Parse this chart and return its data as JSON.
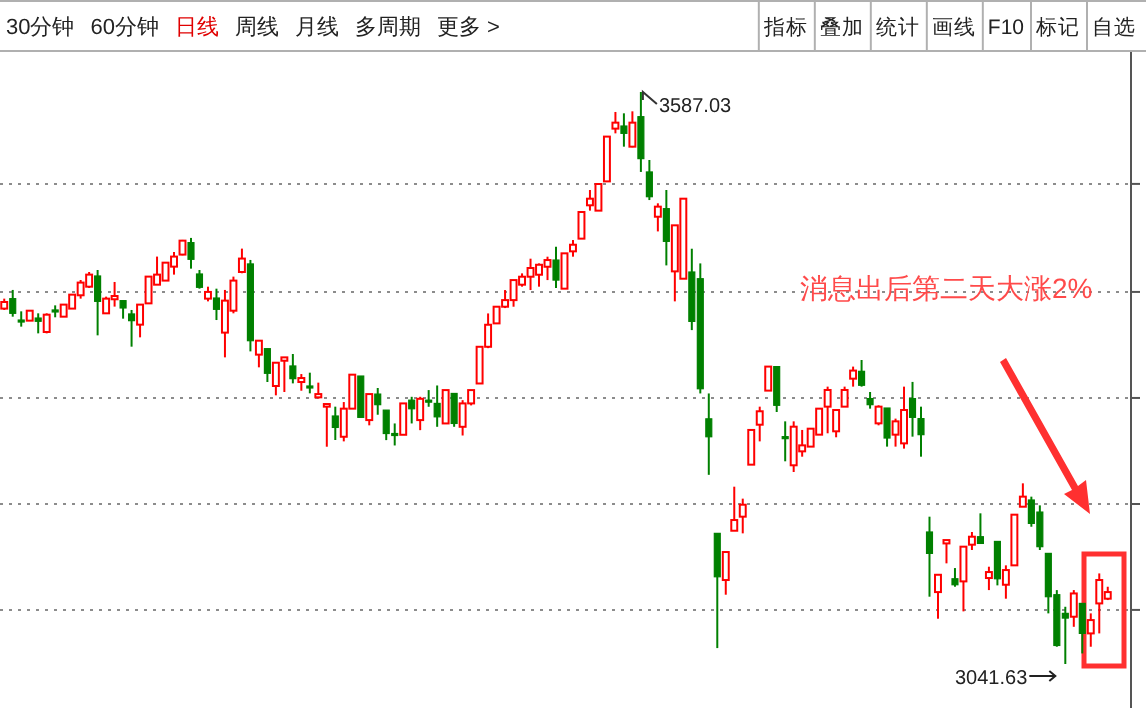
{
  "chart_data": {
    "type": "candlestick",
    "categories": [
      null,
      null,
      null,
      null,
      null,
      null,
      null,
      null,
      null,
      null,
      null,
      null,
      null,
      null,
      null,
      null,
      null,
      null,
      null,
      null,
      null,
      null,
      null,
      null,
      null,
      null,
      null,
      null,
      null,
      null,
      null,
      null,
      null,
      null,
      null,
      null,
      null,
      null,
      null,
      null,
      null,
      null,
      null,
      null,
      null,
      null,
      null,
      null,
      null,
      null,
      null,
      null,
      null,
      null,
      null,
      null,
      null,
      null,
      null,
      null,
      null,
      null,
      null,
      null,
      null,
      null,
      null,
      null,
      null,
      null,
      null,
      null,
      null,
      null,
      null,
      null,
      null,
      null,
      null,
      null,
      null,
      null,
      null,
      null,
      null,
      null,
      null,
      null,
      null,
      null,
      null,
      null,
      null,
      null,
      null,
      null,
      null,
      null,
      null,
      null,
      null,
      null,
      null,
      null,
      null,
      null,
      null,
      null,
      null,
      null,
      null,
      null,
      null,
      null,
      null,
      null,
      null,
      null,
      null,
      null,
      null,
      null,
      null,
      null,
      null,
      null,
      null,
      null,
      null,
      null,
      null
    ],
    "ohlc": [
      [
        3380.5,
        3390.0,
        3379.2,
        3386.8
      ],
      [
        3390.0,
        3398.3,
        3372.8,
        3376.0
      ],
      [
        3369.6,
        3377.9,
        3363.3,
        3368.4
      ],
      [
        3369.0,
        3378.5,
        3369.0,
        3378.5
      ],
      [
        3371.5,
        3376.0,
        3356.9,
        3368.4
      ],
      [
        3358.2,
        3376.0,
        3356.9,
        3374.7
      ],
      [
        3379.2,
        3383.6,
        3372.2,
        3377.9
      ],
      [
        3372.8,
        3384.3,
        3372.8,
        3384.3
      ],
      [
        3380.5,
        3393.8,
        3380.5,
        3393.8
      ],
      [
        3393.2,
        3407.8,
        3390.0,
        3405.3
      ],
      [
        3401.4,
        3415.4,
        3400.2,
        3412.9
      ],
      [
        3411.6,
        3417.3,
        3355.0,
        3387.4
      ],
      [
        3376.0,
        3391.9,
        3376.0,
        3390.0
      ],
      [
        3389.4,
        3405.9,
        3382.4,
        3392.5
      ],
      [
        3388.1,
        3388.1,
        3370.9,
        3381.1
      ],
      [
        3375.4,
        3379.2,
        3344.2,
        3369.0
      ],
      [
        3365.2,
        3384.3,
        3353.1,
        3384.3
      ],
      [
        3385.5,
        3411.0,
        3385.5,
        3411.0
      ],
      [
        3403.3,
        3430.1,
        3403.3,
        3412.9
      ],
      [
        3407.2,
        3424.3,
        3407.2,
        3424.3
      ],
      [
        3420.5,
        3434.5,
        3412.9,
        3430.1
      ],
      [
        3432.0,
        3446.0,
        3431.3,
        3445.3
      ],
      [
        3443.4,
        3447.9,
        3418.6,
        3427.5
      ],
      [
        3413.5,
        3417.3,
        3399.5,
        3400.8
      ],
      [
        3390.0,
        3401.4,
        3387.4,
        3396.4
      ],
      [
        3390.6,
        3399.5,
        3369.6,
        3379.8
      ],
      [
        3357.6,
        3398.3,
        3334.0,
        3388.1
      ],
      [
        3378.5,
        3411.0,
        3376.0,
        3407.2
      ],
      [
        3415.4,
        3437.7,
        3414.2,
        3428.2
      ],
      [
        3423.1,
        3426.9,
        3339.7,
        3349.9
      ],
      [
        3336.6,
        3349.9,
        3324.5,
        3349.9
      ],
      [
        3342.3,
        3342.3,
        3310.5,
        3318.8
      ],
      [
        3306.7,
        3328.9,
        3297.8,
        3328.9
      ],
      [
        3330.8,
        3334.0,
        3301.0,
        3334.0
      ],
      [
        3325.8,
        3337.2,
        3309.2,
        3313.7
      ],
      [
        3310.5,
        3318.1,
        3302.2,
        3314.3
      ],
      [
        3306.7,
        3319.4,
        3299.7,
        3305.4
      ],
      [
        3295.9,
        3309.9,
        3294.6,
        3299.0
      ],
      [
        3287.0,
        3289.5,
        3248.8,
        3289.5
      ],
      [
        3278.1,
        3287.0,
        3255.2,
        3267.2
      ],
      [
        3258.3,
        3291.4,
        3253.9,
        3285.1
      ],
      [
        3285.1,
        3317.5,
        3285.1,
        3317.5
      ],
      [
        3316.2,
        3316.2,
        3276.8,
        3276.8
      ],
      [
        3274.2,
        3299.0,
        3269.2,
        3299.0
      ],
      [
        3299.0,
        3304.8,
        3279.3,
        3288.9
      ],
      [
        3283.7,
        3283.7,
        3255.1,
        3261.4
      ],
      [
        3261.4,
        3271.0,
        3250.0,
        3260.2
      ],
      [
        3260.2,
        3290.1,
        3260.2,
        3290.1
      ],
      [
        3293.2,
        3296.4,
        3271.0,
        3285.0
      ],
      [
        3274.2,
        3296.4,
        3264.6,
        3294.5
      ],
      [
        3293.2,
        3302.8,
        3286.9,
        3292.0
      ],
      [
        3290.1,
        3307.2,
        3267.8,
        3277.3
      ],
      [
        3271.0,
        3302.8,
        3271.0,
        3302.8
      ],
      [
        3299.6,
        3299.6,
        3267.8,
        3271.0
      ],
      [
        3267.8,
        3293.2,
        3259.5,
        3290.1
      ],
      [
        3290.1,
        3302.8,
        3288.2,
        3302.8
      ],
      [
        3309.1,
        3344.1,
        3309.1,
        3344.1
      ],
      [
        3344.1,
        3375.9,
        3342.8,
        3365.1
      ],
      [
        3366.4,
        3382.3,
        3366.4,
        3382.3
      ],
      [
        3382.3,
        3398.2,
        3381.0,
        3388.6
      ],
      [
        3388.6,
        3407.7,
        3382.3,
        3407.7
      ],
      [
        3403.3,
        3414.1,
        3401.4,
        3410.9
      ],
      [
        3410.9,
        3428.1,
        3398.2,
        3419.2
      ],
      [
        3412.8,
        3423.6,
        3401.4,
        3422.3
      ],
      [
        3420.4,
        3430.0,
        3407.7,
        3426.8
      ],
      [
        3426.8,
        3439.5,
        3400.1,
        3407.7
      ],
      [
        3399.5,
        3433.2,
        3399.5,
        3433.2
      ],
      [
        3435.1,
        3445.9,
        3430.0,
        3441.4
      ],
      [
        3447.2,
        3472.6,
        3447.2,
        3472.6
      ],
      [
        3479.0,
        3493.6,
        3473.9,
        3485.3
      ],
      [
        3473.9,
        3499.3,
        3473.9,
        3499.3
      ],
      [
        3501.8,
        3544.5,
        3501.8,
        3544.5
      ],
      [
        3552.1,
        3568.0,
        3547.6,
        3557.8
      ],
      [
        3554.6,
        3566.7,
        3534.9,
        3547.6
      ],
      [
        3534.9,
        3568.6,
        3534.3,
        3557.8
      ],
      [
        3563.5,
        3587.03,
        3510.8,
        3523.5
      ],
      [
        3510.8,
        3522.2,
        3484.0,
        3487.2
      ],
      [
        3468.1,
        3480.9,
        3454.1,
        3477.7
      ],
      [
        3475.8,
        3493.6,
        3421.7,
        3444.6
      ],
      [
        3416.0,
        3459.9,
        3387.4,
        3459.9
      ],
      [
        3409.0,
        3485.3,
        3409.0,
        3485.3
      ],
      [
        3415.4,
        3437.6,
        3360.0,
        3368.3
      ],
      [
        3409.0,
        3423.6,
        3299.6,
        3304.1
      ],
      [
        3275.4,
        3299.6,
        3222.0,
        3258.3
      ],
      [
        3166.2,
        3166.2,
        3056.8,
        3124.8
      ],
      [
        3121.7,
        3148.4,
        3107.7,
        3148.4
      ],
      [
        3168.7,
        3210.7,
        3168.7,
        3178.9
      ],
      [
        3182.1,
        3199.3,
        3166.2,
        3193.5
      ],
      [
        3231.7,
        3264.8,
        3231.7,
        3264.8
      ],
      [
        3269.8,
        3287.0,
        3253.9,
        3282.6
      ],
      [
        3302.3,
        3325.2,
        3302.3,
        3325.2
      ],
      [
        3325.2,
        3325.2,
        3281.9,
        3288.3
      ],
      [
        3258.4,
        3273.0,
        3234.9,
        3256.5
      ],
      [
        3231.1,
        3273.0,
        3224.7,
        3267.9
      ],
      [
        3244.4,
        3264.8,
        3239.3,
        3250.1
      ],
      [
        3248.9,
        3266.0,
        3248.9,
        3266.0
      ],
      [
        3260.3,
        3285.1,
        3260.3,
        3285.1
      ],
      [
        3287.0,
        3306.1,
        3261.6,
        3302.9
      ],
      [
        3263.5,
        3283.8,
        3257.8,
        3283.8
      ],
      [
        3287.0,
        3306.1,
        3287.0,
        3302.9
      ],
      [
        3313.7,
        3325.2,
        3306.1,
        3321.4
      ],
      [
        3320.7,
        3331.5,
        3306.1,
        3307.4
      ],
      [
        3294.7,
        3301.0,
        3285.1,
        3288.9
      ],
      [
        3271.1,
        3288.3,
        3269.2,
        3287.0
      ],
      [
        3285.7,
        3285.7,
        3248.9,
        3257.1
      ],
      [
        3260.3,
        3275.6,
        3248.9,
        3273.0
      ],
      [
        3252.0,
        3306.1,
        3247.0,
        3283.8
      ],
      [
        3294.7,
        3310.6,
        3258.4,
        3276.8
      ],
      [
        3275.6,
        3287.0,
        3239.3,
        3260.3
      ],
      [
        3167.5,
        3182.1,
        3105.8,
        3147.1
      ],
      [
        3110.2,
        3126.7,
        3084.8,
        3126.7
      ],
      [
        3156.6,
        3159.8,
        3137.6,
        3159.8
      ],
      [
        3122.9,
        3133.1,
        3115.3,
        3117.2
      ],
      [
        3120.4,
        3153.5,
        3091.8,
        3153.5
      ],
      [
        3155.4,
        3167.5,
        3150.3,
        3163.0
      ],
      [
        3163.0,
        3185.3,
        3156.6,
        3156.6
      ],
      [
        3123.6,
        3134.4,
        3112.1,
        3129.3
      ],
      [
        3158.5,
        3158.5,
        3116.6,
        3122.9
      ],
      [
        3117.2,
        3135.7,
        3103.9,
        3131.2
      ],
      [
        3135.7,
        3184.0,
        3135.7,
        3184.0
      ],
      [
        3191.6,
        3213.9,
        3191.6,
        3201.2
      ],
      [
        3198.0,
        3201.2,
        3172.5,
        3175.7
      ],
      [
        3186.5,
        3192.9,
        3150.3,
        3153.5
      ],
      [
        3147.1,
        3147.1,
        3089.9,
        3105.8
      ],
      [
        3107.7,
        3112.1,
        3058.1,
        3059.3
      ],
      [
        3089.9,
        3096.2,
        3041.63,
        3085.4
      ],
      [
        3086.7,
        3112.1,
        3077.1,
        3108.9
      ],
      [
        3099.4,
        3099.4,
        3051.7,
        3070.8
      ],
      [
        3070.8,
        3089.9,
        3058.1,
        3083.5
      ],
      [
        3099.4,
        3128.0,
        3070.8,
        3121.7
      ],
      [
        3103.9,
        3115.3,
        3102.6,
        3110.2
      ]
    ],
    "colors": [
      "#ff0000",
      "#008000",
      "#008000",
      "#ff0000",
      "#008000",
      "#ff0000",
      "#008000",
      "#ff0000",
      "#ff0000",
      "#ff0000",
      "#ff0000",
      "#008000",
      "#ff0000",
      "#ff0000",
      "#008000",
      "#008000",
      "#ff0000",
      "#ff0000",
      "#ff0000",
      "#ff0000",
      "#ff0000",
      "#ff0000",
      "#008000",
      "#008000",
      "#ff0000",
      "#008000",
      "#ff0000",
      "#ff0000",
      "#ff0000",
      "#008000",
      "#ff0000",
      "#008000",
      "#ff0000",
      "#ff0000",
      "#008000",
      "#ff0000",
      "#008000",
      "#ff0000",
      "#ff0000",
      "#008000",
      "#ff0000",
      "#ff0000",
      "#008000",
      "#ff0000",
      "#008000",
      "#008000",
      "#008000",
      "#ff0000",
      "#008000",
      "#ff0000",
      "#008000",
      "#008000",
      "#ff0000",
      "#008000",
      "#ff0000",
      "#ff0000",
      "#ff0000",
      "#ff0000",
      "#ff0000",
      "#ff0000",
      "#ff0000",
      "#ff0000",
      "#ff0000",
      "#ff0000",
      "#ff0000",
      "#008000",
      "#ff0000",
      "#ff0000",
      "#ff0000",
      "#ff0000",
      "#ff0000",
      "#ff0000",
      "#ff0000",
      "#008000",
      "#ff0000",
      "#008000",
      "#008000",
      "#ff0000",
      "#008000",
      "#ff0000",
      "#ff0000",
      "#008000",
      "#008000",
      "#008000",
      "#008000",
      "#ff0000",
      "#ff0000",
      "#ff0000",
      "#ff0000",
      "#ff0000",
      "#ff0000",
      "#008000",
      "#008000",
      "#ff0000",
      "#ff0000",
      "#ff0000",
      "#ff0000",
      "#ff0000",
      "#ff0000",
      "#ff0000",
      "#ff0000",
      "#008000",
      "#008000",
      "#ff0000",
      "#008000",
      "#ff0000",
      "#ff0000",
      "#008000",
      "#008000",
      "#008000",
      "#ff0000",
      "#ff0000",
      "#008000",
      "#ff0000",
      "#ff0000",
      "#008000",
      "#ff0000",
      "#008000",
      "#ff0000",
      "#ff0000",
      "#ff0000",
      "#008000",
      "#008000",
      "#008000",
      "#008000",
      "#008000",
      "#ff0000",
      "#008000",
      "#ff0000",
      "#ff0000",
      "#ff0000"
    ],
    "yticks": [
      {
        "value": 3093.2,
        "label": null
      },
      {
        "value": 3194.2,
        "label": null
      },
      {
        "value": 3295.3,
        "label": null
      },
      {
        "value": 3396.4,
        "label": null
      },
      {
        "value": 3499.4,
        "label": null
      }
    ],
    "grid": "y",
    "annotations": [
      "30分钟",
      "60分钟",
      "日线",
      "周线",
      "月线",
      "多周期",
      "更多 >",
      "指标",
      "叠加",
      "统计",
      "画线",
      "F10",
      "标记",
      "自选",
      "消息出后第二天大涨2%",
      "3587.03",
      "3041.63"
    ]
  }
}
